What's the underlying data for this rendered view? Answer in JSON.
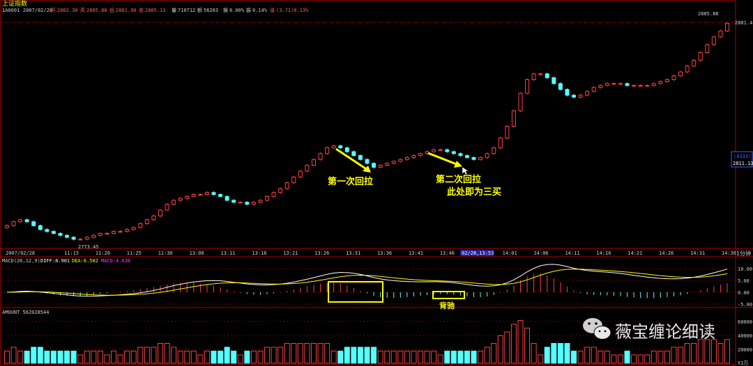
{
  "header": {
    "title": "上证指数",
    "code": "1A0001",
    "date": "2007/02/28",
    "open_label": "开",
    "open_value": "2882.30",
    "high_label": "高",
    "high_value": "2885.88",
    "low_label": "低",
    "low_value": "2881.90",
    "close_label": "收",
    "close_value": "2885.13",
    "volume_label": "量",
    "volume_value": "710712",
    "amount_label": "额",
    "amount_value": "56203",
    "turnover_label": "换",
    "turnover_value": "0.00%",
    "amplitude_label": "振",
    "amplitude_value": "0.14%",
    "change_label": "涨",
    "change_value": "(3.71)0.13%"
  },
  "right_axis": {
    "top_value": "2881.4",
    "peak_label": "2885.88",
    "mid_box_top": "(8333)",
    "mid_box_bottom": "2811.13",
    "low_label": "2773.45",
    "period": "1分钟"
  },
  "time_axis": {
    "date_label": "2007/02/28",
    "ticks": [
      "11:15",
      "11:20",
      "11:25",
      "11:30",
      "13:06",
      "13:11",
      "13:16",
      "13:21",
      "13:26",
      "13:31",
      "13:36",
      "13:41",
      "13:46",
      "13:51",
      "14:01",
      "14:06",
      "14:11",
      "14:16",
      "14:21",
      "14:26",
      "14:31",
      "14:36"
    ],
    "cursor_label": "02/28,13:53"
  },
  "macd": {
    "label": "MACD(26,12,9)",
    "diff_label": "DIFF:8.901",
    "dea_label": "DEA:6.582",
    "macd_label": "MACD:4.638",
    "axis": [
      "10.00",
      "5.00",
      "0.00",
      "-5.00"
    ]
  },
  "amount": {
    "label": "AMOUNT 562028544",
    "axis": [
      "60000",
      "40000",
      "20000",
      "X1万"
    ]
  },
  "annotations": {
    "first_pullback": "第一次回拉",
    "second_pullback": "第二次回拉",
    "third_buy": "此处即为三买",
    "divergence": "背驰"
  },
  "watermark": "薇宝缠论细读",
  "colors": {
    "up": "#ff4040",
    "down": "#54ffff",
    "annotation": "#ffff00",
    "axis": "#b00000",
    "diff_line": "#ffffff",
    "dea_line": "#ffff00"
  },
  "chart_data": {
    "type": "candlestick",
    "title": "上证指数",
    "ylim": [
      2773.45,
      2885.88
    ],
    "close_series": [
      2781,
      2783,
      2784,
      2783,
      2781,
      2779,
      2778,
      2777,
      2776,
      2775,
      2774,
      2774,
      2775,
      2776,
      2777,
      2777,
      2778,
      2778,
      2779,
      2780,
      2782,
      2784,
      2786,
      2789,
      2792,
      2794,
      2795,
      2796,
      2797,
      2797,
      2798,
      2797,
      2796,
      2794,
      2793,
      2793,
      2792,
      2793,
      2794,
      2796,
      2798,
      2800,
      2803,
      2806,
      2809,
      2812,
      2815,
      2818,
      2821,
      2822,
      2821,
      2819,
      2817,
      2815,
      2813,
      2811,
      2812,
      2813,
      2814,
      2815,
      2816,
      2817,
      2818,
      2819,
      2820,
      2820,
      2819,
      2818,
      2817,
      2816,
      2815,
      2816,
      2818,
      2821,
      2826,
      2832,
      2840,
      2849,
      2856,
      2859,
      2859,
      2857,
      2854,
      2851,
      2848,
      2847,
      2848,
      2850,
      2852,
      2853,
      2854,
      2854,
      2854,
      2853,
      2853,
      2853,
      2853,
      2854,
      2855,
      2856,
      2858,
      2860,
      2863,
      2866,
      2870,
      2874,
      2878,
      2881,
      2885
    ]
  }
}
